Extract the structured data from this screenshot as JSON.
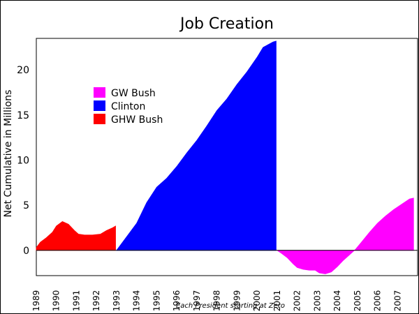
{
  "chart_data": {
    "type": "area",
    "title": "Job Creation",
    "ylabel": "Net Cumulative in Millions",
    "xlabel": "Each President starting at Zero",
    "ylim": [
      -2.8,
      23.5
    ],
    "xlim": [
      1989,
      2008
    ],
    "y_ticks": [
      0,
      5,
      10,
      15,
      20
    ],
    "x_ticks": [
      "1989",
      "1990",
      "1991",
      "1992",
      "1993",
      "1994",
      "1995",
      "1996",
      "1997",
      "1998",
      "1999",
      "2000",
      "2001",
      "2002",
      "2003",
      "2004",
      "2005",
      "2006",
      "2007"
    ],
    "grid": false,
    "legend_position": "upper-left",
    "series": [
      {
        "name": "GW Bush",
        "color": "#ff00ff",
        "points": [
          [
            2001.0,
            0.0
          ],
          [
            2001.2,
            -0.3
          ],
          [
            2001.5,
            -0.8
          ],
          [
            2001.8,
            -1.5
          ],
          [
            2002.0,
            -1.9
          ],
          [
            2002.3,
            -2.1
          ],
          [
            2002.6,
            -2.2
          ],
          [
            2002.9,
            -2.2
          ],
          [
            2003.1,
            -2.5
          ],
          [
            2003.4,
            -2.6
          ],
          [
            2003.7,
            -2.4
          ],
          [
            2004.0,
            -1.8
          ],
          [
            2004.3,
            -1.1
          ],
          [
            2004.6,
            -0.5
          ],
          [
            2004.9,
            0.1
          ],
          [
            2005.2,
            0.9
          ],
          [
            2005.6,
            2.0
          ],
          [
            2006.0,
            3.0
          ],
          [
            2006.4,
            3.8
          ],
          [
            2006.8,
            4.5
          ],
          [
            2007.2,
            5.1
          ],
          [
            2007.6,
            5.7
          ],
          [
            2007.8,
            5.8
          ]
        ]
      },
      {
        "name": "Clinton",
        "color": "#0000ff",
        "points": [
          [
            1993.0,
            0.0
          ],
          [
            1993.3,
            0.9
          ],
          [
            1993.6,
            1.8
          ],
          [
            1994.0,
            3.0
          ],
          [
            1994.5,
            5.3
          ],
          [
            1995.0,
            7.0
          ],
          [
            1995.5,
            8.0
          ],
          [
            1996.0,
            9.3
          ],
          [
            1996.5,
            10.8
          ],
          [
            1997.0,
            12.2
          ],
          [
            1997.5,
            13.8
          ],
          [
            1998.0,
            15.5
          ],
          [
            1998.5,
            16.8
          ],
          [
            1999.0,
            18.4
          ],
          [
            1999.5,
            19.8
          ],
          [
            2000.0,
            21.4
          ],
          [
            2000.3,
            22.5
          ],
          [
            2000.8,
            23.1
          ],
          [
            2000.95,
            23.2
          ]
        ]
      },
      {
        "name": "GHW Bush",
        "color": "#ff0000",
        "points": [
          [
            1989.0,
            0.3
          ],
          [
            1989.2,
            0.9
          ],
          [
            1989.5,
            1.4
          ],
          [
            1989.8,
            2.0
          ],
          [
            1990.0,
            2.7
          ],
          [
            1990.3,
            3.2
          ],
          [
            1990.6,
            2.9
          ],
          [
            1990.9,
            2.2
          ],
          [
            1991.1,
            1.8
          ],
          [
            1991.4,
            1.7
          ],
          [
            1991.8,
            1.7
          ],
          [
            1992.2,
            1.8
          ],
          [
            1992.5,
            2.2
          ],
          [
            1992.8,
            2.5
          ],
          [
            1992.95,
            2.7
          ]
        ]
      }
    ]
  }
}
